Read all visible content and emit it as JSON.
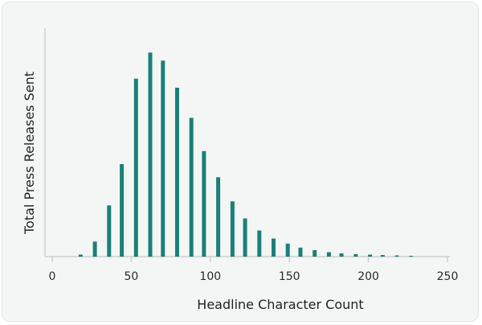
{
  "chart_data": {
    "type": "bar",
    "xlabel": "Headline Character Count",
    "ylabel": "Total Press Releases Sent",
    "xlim": [
      0,
      250
    ],
    "xticks": [
      0,
      50,
      100,
      150,
      200,
      250
    ],
    "bar_color": "#1a8079",
    "axis_color": "#cfcfcf",
    "grid": false,
    "legend": "none",
    "x": [
      18,
      27,
      36,
      44,
      53,
      62,
      70,
      79,
      88,
      96,
      105,
      114,
      122,
      131,
      140,
      149,
      157,
      166,
      175,
      183,
      192,
      201,
      209,
      218,
      227
    ],
    "values": [
      1.0,
      7.5,
      25.5,
      46.0,
      88.5,
      101.5,
      97.5,
      84.0,
      69.0,
      52.5,
      39.5,
      27.5,
      19.0,
      13.0,
      9.0,
      6.5,
      4.5,
      3.2,
      2.2,
      1.6,
      1.2,
      1.0,
      0.8,
      0.6,
      0.4
    ],
    "ylim": [
      0,
      110
    ]
  }
}
